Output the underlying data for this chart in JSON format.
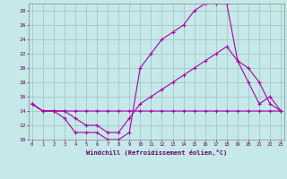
{
  "xlabel": "Windchill (Refroidissement éolien,°C)",
  "background_color": "#c5e8e8",
  "grid_color": "#a0c0c0",
  "line_color": "#aa00aa",
  "x_ticks": [
    0,
    1,
    2,
    3,
    4,
    5,
    6,
    7,
    8,
    9,
    10,
    11,
    12,
    13,
    14,
    15,
    16,
    17,
    18,
    19,
    20,
    21,
    22,
    23
  ],
  "ylim": [
    10,
    29
  ],
  "xlim": [
    -0.3,
    23.3
  ],
  "yticks": [
    10,
    12,
    14,
    16,
    18,
    20,
    22,
    24,
    26,
    28
  ],
  "line1_x": [
    0,
    1,
    2,
    3,
    4,
    5,
    6,
    7,
    8,
    9,
    10,
    11,
    12,
    13,
    14,
    15,
    16,
    17,
    18,
    19,
    20,
    21,
    22,
    23
  ],
  "line1_y": [
    15,
    14,
    14,
    14,
    14,
    14,
    14,
    14,
    14,
    14,
    14,
    14,
    14,
    14,
    14,
    14,
    14,
    14,
    14,
    14,
    14,
    14,
    14,
    14
  ],
  "line2_x": [
    0,
    1,
    2,
    3,
    4,
    5,
    6,
    7,
    8,
    9,
    10,
    11,
    12,
    13,
    14,
    15,
    16,
    17,
    18,
    19,
    20,
    21,
    22,
    23
  ],
  "line2_y": [
    15,
    14,
    14,
    14,
    13,
    12,
    12,
    11,
    11,
    13,
    15,
    16,
    17,
    18,
    19,
    20,
    21,
    22,
    23,
    21,
    20,
    18,
    15,
    14
  ],
  "line3_x": [
    0,
    1,
    2,
    3,
    4,
    5,
    6,
    7,
    8,
    9,
    10,
    11,
    12,
    13,
    14,
    15,
    16,
    17,
    18,
    19,
    20,
    21,
    22,
    23
  ],
  "line3_y": [
    15,
    14,
    14,
    13,
    11,
    11,
    11,
    10,
    10,
    11,
    20,
    22,
    24,
    25,
    26,
    28,
    29,
    29,
    29,
    21,
    18,
    15,
    16,
    14
  ]
}
